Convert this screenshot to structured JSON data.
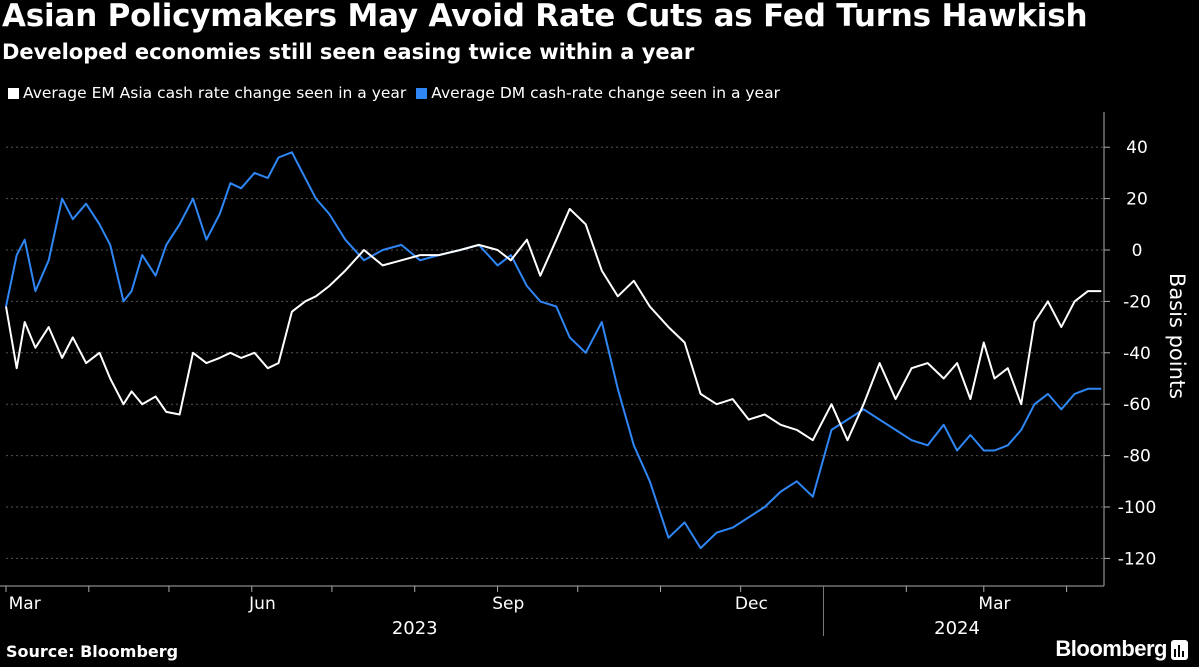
{
  "chart_data": {
    "type": "line",
    "title": "Asian Policymakers May Avoid Rate Cuts as Fed Turns Hawkish",
    "subtitle": "Developed economies still seen easing twice within a year",
    "ylabel": "Basis points",
    "ylim": [
      -128,
      55
    ],
    "yticks": [
      40,
      20,
      0,
      -20,
      -40,
      -60,
      -80,
      -100,
      -120
    ],
    "x_tick_labels": [
      "Mar",
      "Jun",
      "Sep",
      "Dec",
      "Mar"
    ],
    "year_labels": [
      "2023",
      "2024"
    ],
    "x_start": "2023-03-01",
    "x_end": "2024-04-15",
    "grid": true,
    "legend_position": "top-left",
    "series": [
      {
        "name": "Average EM Asia cash rate change seen in a year",
        "color": "#ffffff",
        "x": [
          "2023-03-01",
          "2023-03-05",
          "2023-03-08",
          "2023-03-12",
          "2023-03-17",
          "2023-03-22",
          "2023-03-26",
          "2023-03-31",
          "2023-04-05",
          "2023-04-09",
          "2023-04-14",
          "2023-04-17",
          "2023-04-21",
          "2023-04-26",
          "2023-04-30",
          "2023-05-05",
          "2023-05-10",
          "2023-05-15",
          "2023-05-20",
          "2023-05-24",
          "2023-05-28",
          "2023-06-02",
          "2023-06-07",
          "2023-06-11",
          "2023-06-16",
          "2023-06-21",
          "2023-06-25",
          "2023-06-30",
          "2023-07-06",
          "2023-07-13",
          "2023-07-20",
          "2023-07-27",
          "2023-08-03",
          "2023-08-10",
          "2023-08-18",
          "2023-08-25",
          "2023-09-01",
          "2023-09-06",
          "2023-09-12",
          "2023-09-17",
          "2023-09-23",
          "2023-09-28",
          "2023-10-04",
          "2023-10-10",
          "2023-10-16",
          "2023-10-22",
          "2023-10-28",
          "2023-11-04",
          "2023-11-10",
          "2023-11-16",
          "2023-11-22",
          "2023-11-28",
          "2023-12-04",
          "2023-12-10",
          "2023-12-16",
          "2023-12-22",
          "2023-12-28",
          "2024-01-04",
          "2024-01-10",
          "2024-01-16",
          "2024-01-22",
          "2024-01-28",
          "2024-02-03",
          "2024-02-09",
          "2024-02-15",
          "2024-02-20",
          "2024-02-25",
          "2024-03-01",
          "2024-03-05",
          "2024-03-10",
          "2024-03-15",
          "2024-03-20",
          "2024-03-25",
          "2024-03-30",
          "2024-04-04",
          "2024-04-09",
          "2024-04-14"
        ],
        "values": [
          -22,
          -46,
          -28,
          -38,
          -30,
          -42,
          -34,
          -44,
          -40,
          -50,
          -60,
          -55,
          -60,
          -57,
          -63,
          -64,
          -40,
          -44,
          -42,
          -40,
          -42,
          -40,
          -46,
          -44,
          -24,
          -20,
          -18,
          -14,
          -8,
          0,
          -6,
          -4,
          -2,
          -2,
          0,
          2,
          0,
          -4,
          4,
          -10,
          4,
          16,
          10,
          -8,
          -18,
          -12,
          -22,
          -30,
          -36,
          -56,
          -60,
          -58,
          -66,
          -64,
          -68,
          -70,
          -74,
          -60,
          -74,
          -60,
          -44,
          -58,
          -46,
          -44,
          -50,
          -44,
          -58,
          -36,
          -50,
          -46,
          -60,
          -28,
          -20,
          -30,
          -20,
          -16,
          -16
        ]
      },
      {
        "name": "Average DM cash-rate change seen in a year",
        "color": "#2f86f5",
        "x": [
          "2023-03-01",
          "2023-03-05",
          "2023-03-08",
          "2023-03-12",
          "2023-03-17",
          "2023-03-22",
          "2023-03-26",
          "2023-03-31",
          "2023-04-05",
          "2023-04-09",
          "2023-04-14",
          "2023-04-17",
          "2023-04-21",
          "2023-04-26",
          "2023-04-30",
          "2023-05-05",
          "2023-05-10",
          "2023-05-15",
          "2023-05-20",
          "2023-05-24",
          "2023-05-28",
          "2023-06-02",
          "2023-06-07",
          "2023-06-11",
          "2023-06-16",
          "2023-06-21",
          "2023-06-25",
          "2023-06-30",
          "2023-07-06",
          "2023-07-13",
          "2023-07-20",
          "2023-07-27",
          "2023-08-03",
          "2023-08-10",
          "2023-08-18",
          "2023-08-25",
          "2023-09-01",
          "2023-09-06",
          "2023-09-12",
          "2023-09-17",
          "2023-09-23",
          "2023-09-28",
          "2023-10-04",
          "2023-10-10",
          "2023-10-16",
          "2023-10-22",
          "2023-10-28",
          "2023-11-04",
          "2023-11-10",
          "2023-11-16",
          "2023-11-22",
          "2023-11-28",
          "2023-12-04",
          "2023-12-10",
          "2023-12-16",
          "2023-12-22",
          "2023-12-28",
          "2024-01-04",
          "2024-01-10",
          "2024-01-16",
          "2024-01-22",
          "2024-01-28",
          "2024-02-03",
          "2024-02-09",
          "2024-02-15",
          "2024-02-20",
          "2024-02-25",
          "2024-03-01",
          "2024-03-05",
          "2024-03-10",
          "2024-03-15",
          "2024-03-20",
          "2024-03-25",
          "2024-03-30",
          "2024-04-04",
          "2024-04-09",
          "2024-04-14"
        ],
        "values": [
          -22,
          -2,
          4,
          -16,
          -4,
          20,
          12,
          18,
          10,
          2,
          -20,
          -16,
          -2,
          -10,
          2,
          10,
          20,
          4,
          14,
          26,
          24,
          30,
          28,
          36,
          38,
          28,
          20,
          14,
          4,
          -4,
          0,
          2,
          -4,
          -2,
          0,
          2,
          -6,
          -2,
          -14,
          -20,
          -22,
          -34,
          -40,
          -28,
          -54,
          -76,
          -90,
          -112,
          -106,
          -116,
          -110,
          -108,
          -104,
          -100,
          -94,
          -90,
          -96,
          -70,
          -66,
          -62,
          -66,
          -70,
          -74,
          -76,
          -68,
          -78,
          -72,
          -78,
          -78,
          -76,
          -70,
          -60,
          -56,
          -62,
          -56,
          -54,
          -54
        ]
      }
    ]
  },
  "footer": {
    "source": "Source: Bloomberg",
    "brand": "Bloomberg"
  }
}
